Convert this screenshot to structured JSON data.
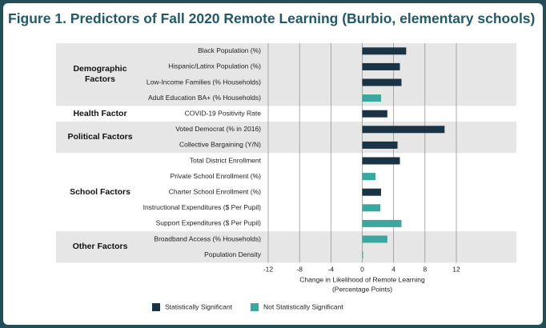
{
  "chart_data": {
    "type": "bar",
    "orientation": "horizontal",
    "title": "Figure 1. Predictors of Fall 2020 Remote Learning (Burbio, elementary schools)",
    "groups": [
      {
        "name": "Demographic\nFactors",
        "categories": [
          "Black Population (%)",
          "Hispanic/Latinx Population (%)",
          "Low-Income Families (% Households)",
          "Adult Education BA+ (% Households)"
        ]
      },
      {
        "name": "Health Factor",
        "categories": [
          "COVID-19 Positivity Rate"
        ]
      },
      {
        "name": "Political Factors",
        "categories": [
          "Voted Democrat (% in 2016)",
          "Collective Bargaining (Y/N)"
        ]
      },
      {
        "name": "School Factors",
        "categories": [
          "Total District Enrollment",
          "Private School Enrollment (%)",
          "Charter School Enrollment (%)",
          "Instructional Expenditures ($ Per Pupil)",
          "Support Expenditures ($ Per Pupil)"
        ]
      },
      {
        "name": "Other Factors",
        "categories": [
          "Broadband Access (% Households)",
          "Population Density"
        ]
      }
    ],
    "series": [
      {
        "name": "Statistically Significant",
        "color": "#1b3445",
        "values": [
          5.6,
          4.8,
          5.0,
          null,
          3.2,
          10.5,
          4.5,
          4.8,
          null,
          2.4,
          null,
          null,
          null,
          null
        ]
      },
      {
        "name": "Not Statistically Significant",
        "color": "#3ba89f",
        "values": [
          null,
          null,
          null,
          2.4,
          null,
          null,
          null,
          null,
          1.7,
          null,
          2.3,
          5.0,
          3.2,
          0.1
        ]
      }
    ],
    "xlim": [
      -12,
      12
    ],
    "xticks": [
      -12,
      -8,
      -4,
      0,
      4,
      8,
      12
    ],
    "xlabel": "Change in Likelihood of Remote Learning\n(Percentage Points)",
    "grid": true,
    "legend": "bottom"
  }
}
